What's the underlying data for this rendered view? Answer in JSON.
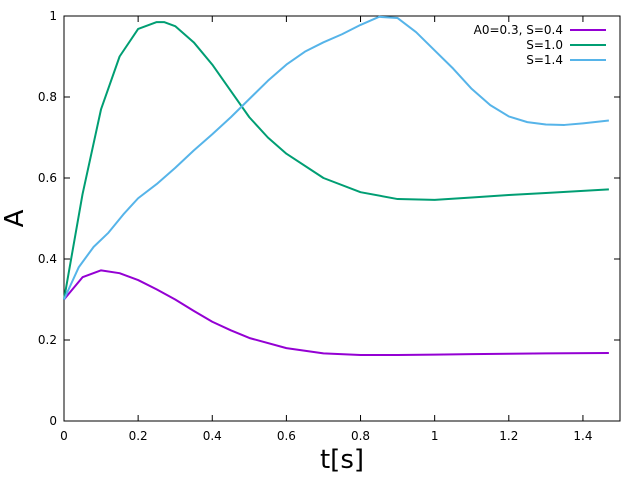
{
  "chart_data": {
    "type": "line",
    "title": "",
    "xlabel": "t[s]",
    "ylabel": "A",
    "xlim": [
      0,
      1.5
    ],
    "ylim": [
      0,
      1
    ],
    "x_ticks": [
      0,
      0.2,
      0.4,
      0.6,
      0.8,
      1.0,
      1.2,
      1.4
    ],
    "x_tick_labels": [
      "0",
      "0.2",
      "0.4",
      "0.6",
      "0.8",
      "1",
      "1.2",
      "1.4"
    ],
    "y_ticks": [
      0,
      0.2,
      0.4,
      0.6,
      0.8,
      1.0
    ],
    "y_tick_labels": [
      "0",
      "0.2",
      "0.4",
      "0.6",
      "0.8",
      "1"
    ],
    "grid": false,
    "legend_position": "top-right",
    "series": [
      {
        "name": "A0=0.3, S=0.4",
        "color": "#9400d3",
        "x": [
          0,
          0.05,
          0.1,
          0.15,
          0.2,
          0.25,
          0.3,
          0.35,
          0.4,
          0.45,
          0.5,
          0.6,
          0.7,
          0.8,
          0.9,
          1.0,
          1.1,
          1.2,
          1.3,
          1.47
        ],
        "y": [
          0.3,
          0.355,
          0.372,
          0.365,
          0.348,
          0.325,
          0.3,
          0.272,
          0.245,
          0.224,
          0.205,
          0.18,
          0.167,
          0.163,
          0.163,
          0.164,
          0.165,
          0.166,
          0.167,
          0.168
        ]
      },
      {
        "name": "S=1.0",
        "color": "#009e73",
        "x": [
          0,
          0.05,
          0.1,
          0.15,
          0.2,
          0.25,
          0.27,
          0.3,
          0.35,
          0.4,
          0.45,
          0.5,
          0.55,
          0.6,
          0.7,
          0.8,
          0.9,
          1.0,
          1.1,
          1.2,
          1.3,
          1.47
        ],
        "y": [
          0.3,
          0.56,
          0.77,
          0.9,
          0.968,
          0.985,
          0.985,
          0.975,
          0.935,
          0.88,
          0.815,
          0.75,
          0.7,
          0.66,
          0.6,
          0.565,
          0.548,
          0.546,
          0.552,
          0.558,
          0.563,
          0.572
        ]
      },
      {
        "name": "S=1.4",
        "color": "#56b4e9",
        "x": [
          0,
          0.04,
          0.08,
          0.12,
          0.16,
          0.2,
          0.25,
          0.3,
          0.35,
          0.4,
          0.45,
          0.5,
          0.55,
          0.6,
          0.65,
          0.7,
          0.75,
          0.8,
          0.85,
          0.9,
          0.95,
          1.0,
          1.05,
          1.1,
          1.15,
          1.2,
          1.25,
          1.3,
          1.35,
          1.4,
          1.47
        ],
        "y": [
          0.3,
          0.38,
          0.43,
          0.465,
          0.51,
          0.55,
          0.585,
          0.625,
          0.668,
          0.708,
          0.75,
          0.795,
          0.84,
          0.88,
          0.912,
          0.935,
          0.955,
          0.978,
          0.998,
          0.995,
          0.96,
          0.915,
          0.87,
          0.82,
          0.78,
          0.752,
          0.738,
          0.732,
          0.731,
          0.735,
          0.742
        ]
      }
    ]
  }
}
